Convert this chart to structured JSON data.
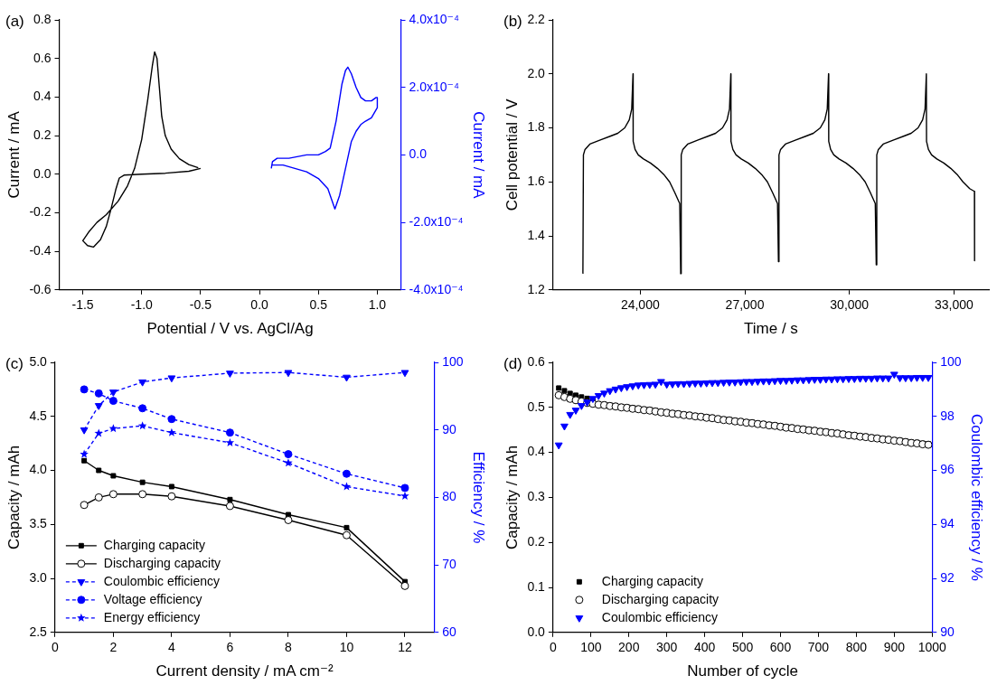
{
  "chart_data": [
    {
      "type": "line",
      "title": "(a)",
      "xlabel": "Potential / V vs. AgCl/Ag",
      "ylabel": "Current / mA",
      "y2label": "Current / mA",
      "marker": "none",
      "xlim": [
        -1.7,
        1.2
      ],
      "xticks": [
        -1.5,
        {
          "value": -1,
          "label": "-1.0"
        },
        -0.5,
        {
          "value": 0,
          "label": "0.0"
        },
        0.5,
        {
          "value": 1,
          "label": "1.0"
        }
      ],
      "ylim": [
        -0.6,
        0.8
      ],
      "yticks": [
        -0.6,
        -0.4,
        -0.2,
        {
          "value": 0,
          "label": "0.0"
        },
        0.2,
        0.4,
        0.6,
        0.8
      ],
      "y2lim": [
        -0.0004,
        0.0004
      ],
      "y2ticks": [
        {
          "value": -0.0004,
          "label": "-4.0x10⁻⁴"
        },
        {
          "value": -0.0002,
          "label": "-2.0x10⁻⁴"
        },
        {
          "value": 0,
          "label": "0.0"
        },
        {
          "value": 0.0002,
          "label": "2.0x10⁻⁴"
        },
        {
          "value": 0.0004,
          "label": "4.0x10⁻⁴"
        }
      ],
      "series": [
        {
          "color": "#000000",
          "x": [
            -0.5,
            -0.6,
            -0.8,
            -1.0,
            -1.15,
            -1.19,
            -1.22,
            -1.26,
            -1.3,
            -1.35,
            -1.41,
            -1.46,
            -1.5,
            -1.45,
            -1.38,
            -1.3,
            -1.2,
            -1.12,
            -1.06,
            -1.0,
            -0.95,
            -0.91,
            -0.89,
            -0.87,
            -0.85,
            -0.83,
            -0.8,
            -0.75,
            -0.68,
            -0.6,
            -0.52
          ],
          "values": [
            0.03,
            0.015,
            0.005,
            0.0,
            -0.005,
            -0.02,
            -0.08,
            -0.18,
            -0.27,
            -0.34,
            -0.378,
            -0.37,
            -0.345,
            -0.3,
            -0.25,
            -0.21,
            -0.14,
            -0.06,
            0.03,
            0.18,
            0.38,
            0.56,
            0.634,
            0.6,
            0.45,
            0.3,
            0.2,
            0.13,
            0.08,
            0.05,
            0.033
          ]
        },
        {
          "color": "#0000ff",
          "axis": "y2",
          "x": [
            0.1,
            0.11,
            0.15,
            0.25,
            0.4,
            0.5,
            0.56,
            0.6,
            0.65,
            0.7,
            0.73,
            0.75,
            0.78,
            0.82,
            0.86,
            0.9,
            0.95,
            0.99,
            1.0,
            1.0,
            0.95,
            0.9,
            0.86,
            0.82,
            0.78,
            0.73,
            0.68,
            0.64,
            0.62,
            0.58,
            0.5,
            0.4,
            0.3,
            0.2,
            0.12,
            0.1
          ],
          "values": [
            -4e-05,
            -2e-05,
            -1e-05,
            -1e-05,
            0.0,
            0.0,
            1e-05,
            2e-05,
            0.0001,
            0.00021,
            0.00025,
            0.00026,
            0.00024,
            0.0002,
            0.00017,
            0.00016,
            0.00016,
            0.00017,
            0.00017,
            0.00014,
            0.00011,
            0.0001,
            9e-05,
            7e-05,
            4e-05,
            -4e-05,
            -0.00012,
            -0.00016,
            -0.00014,
            -0.0001,
            -7e-05,
            -5e-05,
            -4e-05,
            -3e-05,
            -3e-05,
            -3e-05
          ]
        }
      ]
    },
    {
      "type": "line",
      "title": "(b)",
      "xlabel": "Time / s",
      "ylabel": "Cell potential / V",
      "marker": "none",
      "xlim": [
        21500,
        34000
      ],
      "xticks": [
        {
          "value": 24000,
          "label": "24,000"
        },
        {
          "value": 27000,
          "label": "27,000"
        },
        {
          "value": 30000,
          "label": "30,000"
        },
        {
          "value": 33000,
          "label": "33,000"
        }
      ],
      "ylim": [
        1.2,
        2.2
      ],
      "yticks": [
        1.2,
        1.4,
        1.6,
        1.8,
        {
          "value": 2,
          "label": "2.0"
        },
        2.2
      ],
      "series": [
        {
          "color": "#000000",
          "x": [
            22356,
            22371,
            22416,
            22556,
            22856,
            23156,
            23356,
            23556,
            23686,
            23756,
            23793,
            23798,
            23853,
            23943,
            24093,
            24293,
            24493,
            24693,
            24843,
            24993,
            25133,
            25161,
            25176,
            25221,
            25361,
            25661,
            25961,
            26161,
            26361,
            26491,
            26561,
            26598,
            26603,
            26658,
            26748,
            26898,
            27098,
            27298,
            27498,
            27648,
            27798,
            27938,
            27965,
            27980,
            28025,
            28165,
            28465,
            28765,
            28965,
            29165,
            29295,
            29365,
            29402,
            29407,
            29462,
            29552,
            29702,
            29902,
            30102,
            30302,
            30452,
            30602,
            30742,
            30770,
            30785,
            30830,
            30970,
            31270,
            31570,
            31770,
            31970,
            32100,
            32170,
            32207,
            32212,
            32267,
            32357,
            32507,
            32707,
            32907,
            33107,
            33257,
            33450,
            33586,
            33590
          ],
          "values": [
            1.26,
            1.7,
            1.72,
            1.74,
            1.755,
            1.77,
            1.78,
            1.8,
            1.83,
            1.87,
            2.0,
            1.75,
            1.72,
            1.7,
            1.685,
            1.67,
            1.65,
            1.625,
            1.6,
            1.56,
            1.52,
            1.26,
            1.7,
            1.72,
            1.74,
            1.755,
            1.77,
            1.78,
            1.8,
            1.83,
            1.87,
            2.0,
            1.75,
            1.72,
            1.7,
            1.685,
            1.67,
            1.65,
            1.625,
            1.6,
            1.56,
            1.52,
            1.305,
            1.7,
            1.72,
            1.74,
            1.755,
            1.77,
            1.78,
            1.8,
            1.83,
            1.87,
            2.0,
            1.75,
            1.72,
            1.7,
            1.685,
            1.67,
            1.65,
            1.625,
            1.6,
            1.56,
            1.52,
            1.293,
            1.7,
            1.72,
            1.74,
            1.755,
            1.77,
            1.78,
            1.8,
            1.83,
            1.87,
            2.0,
            1.75,
            1.72,
            1.7,
            1.685,
            1.67,
            1.65,
            1.625,
            1.6,
            1.575,
            1.565,
            1.308
          ]
        }
      ]
    },
    {
      "type": "line",
      "title": "(c)",
      "xlabel": "Current density / mA cm⁻²",
      "ylabel": "Capacity / mAh",
      "y2label": "Efficiency / %",
      "legend": "bottom left",
      "xlim": [
        0,
        13
      ],
      "xticks": [
        0,
        2,
        4,
        6,
        8,
        10,
        12
      ],
      "ylim": [
        2.5,
        5
      ],
      "yticks": [
        2.5,
        {
          "value": 3,
          "label": "3.0"
        },
        3.5,
        {
          "value": 4,
          "label": "4.0"
        },
        4.5,
        {
          "value": 5,
          "label": "5.0"
        }
      ],
      "y2lim": [
        60,
        100
      ],
      "y2ticks": [
        60,
        70,
        80,
        90,
        100
      ],
      "x": [
        1,
        1.5,
        2,
        3,
        4,
        6,
        8,
        10,
        12
      ],
      "series": [
        {
          "name": "Charging capacity",
          "color": "#000000",
          "marker": "square",
          "line_style": "solid",
          "values": [
            4.09,
            4.0,
            3.95,
            3.89,
            3.85,
            3.73,
            3.59,
            3.47,
            2.97
          ]
        },
        {
          "name": "Discharging capacity",
          "color": "#000000",
          "marker": "circle-open",
          "line_style": "solid",
          "values": [
            3.68,
            3.75,
            3.78,
            3.78,
            3.76,
            3.67,
            3.54,
            3.4,
            2.93
          ]
        },
        {
          "name": "Coulombic efficiency",
          "color": "#0000ff",
          "marker": "triangle-down",
          "line_style": "dashed",
          "axis": "y2",
          "values": [
            90.0,
            93.6,
            95.6,
            97.1,
            97.7,
            98.4,
            98.5,
            97.8,
            98.5
          ]
        },
        {
          "name": "Voltage efficiency",
          "color": "#0000ff",
          "marker": "circle",
          "line_style": "dashed",
          "axis": "y2",
          "values": [
            96.0,
            95.4,
            94.3,
            93.2,
            91.6,
            89.6,
            86.4,
            83.5,
            81.4
          ]
        },
        {
          "name": "Energy efficiency",
          "color": "#0000ff",
          "marker": "star",
          "line_style": "dashed",
          "axis": "y2",
          "values": [
            86.4,
            89.5,
            90.2,
            90.6,
            89.6,
            88.1,
            85.1,
            81.6,
            80.2
          ]
        }
      ]
    },
    {
      "type": "scatter",
      "title": "(d)",
      "xlabel": "Number of cycle",
      "ylabel": "Capacity / mAh",
      "y2label": "Coulombic efficiency / %",
      "legend": "bottom left",
      "xlim": [
        0,
        1000
      ],
      "xticks": [
        0,
        100,
        200,
        300,
        400,
        500,
        600,
        700,
        800,
        900,
        1000
      ],
      "ylim": [
        0,
        0.6
      ],
      "yticks": [
        {
          "value": 0,
          "label": "0.0"
        },
        0.1,
        0.2,
        0.3,
        0.4,
        0.5,
        0.6
      ],
      "y2lim": [
        90,
        100
      ],
      "y2ticks": [
        90,
        92,
        94,
        96,
        98,
        100
      ],
      "x": [
        15,
        30,
        45,
        60,
        75,
        90,
        105,
        120,
        135,
        150,
        165,
        180,
        195,
        210,
        225,
        240,
        255,
        270,
        285,
        300,
        315,
        330,
        345,
        360,
        375,
        390,
        405,
        420,
        435,
        450,
        465,
        480,
        495,
        510,
        525,
        540,
        555,
        570,
        585,
        600,
        615,
        630,
        645,
        660,
        675,
        690,
        705,
        720,
        735,
        750,
        765,
        780,
        795,
        810,
        825,
        840,
        855,
        870,
        885,
        900,
        915,
        930,
        945,
        960,
        975,
        990
      ],
      "series": [
        {
          "name": "Charging capacity",
          "color": "#000000",
          "marker": "square",
          "values": [
            0.543,
            0.537,
            0.531,
            0.527,
            0.523,
            0.52,
            0.517,
            0.508,
            0.507,
            0.505,
            0.504,
            0.502,
            0.501,
            0.499,
            0.498,
            0.496,
            0.495,
            0.493,
            0.491,
            0.49,
            0.488,
            0.487,
            0.485,
            0.484,
            0.482,
            0.481,
            0.479,
            0.478,
            0.476,
            0.474,
            0.473,
            0.471,
            0.47,
            0.468,
            0.467,
            0.465,
            0.464,
            0.462,
            0.461,
            0.459,
            0.457,
            0.456,
            0.454,
            0.453,
            0.451,
            0.45,
            0.448,
            0.447,
            0.445,
            0.444,
            0.442,
            0.44,
            0.439,
            0.437,
            0.436,
            0.434,
            0.433,
            0.431,
            0.43,
            0.428,
            0.427,
            0.425,
            0.423,
            0.422,
            0.42,
            0.419
          ]
        },
        {
          "name": "Discharging capacity",
          "color": "#000000",
          "marker": "circle-open",
          "values": [
            0.527,
            0.523,
            0.519,
            0.516,
            0.513,
            0.51,
            0.508,
            0.506,
            0.505,
            0.503,
            0.502,
            0.5,
            0.499,
            0.497,
            0.496,
            0.494,
            0.493,
            0.491,
            0.489,
            0.488,
            0.486,
            0.485,
            0.483,
            0.482,
            0.48,
            0.479,
            0.477,
            0.476,
            0.474,
            0.472,
            0.471,
            0.469,
            0.468,
            0.466,
            0.465,
            0.463,
            0.462,
            0.46,
            0.459,
            0.457,
            0.455,
            0.454,
            0.452,
            0.451,
            0.449,
            0.448,
            0.446,
            0.445,
            0.443,
            0.442,
            0.44,
            0.438,
            0.437,
            0.435,
            0.434,
            0.432,
            0.431,
            0.429,
            0.428,
            0.426,
            0.425,
            0.423,
            0.421,
            0.42,
            0.418,
            0.417
          ]
        },
        {
          "name": "Coulombic efficiency",
          "color": "#0000ff",
          "marker": "triangle-down",
          "axis": "y2",
          "values": [
            96.94,
            97.64,
            98.07,
            98.23,
            98.4,
            98.53,
            98.66,
            98.77,
            98.86,
            98.95,
            99.01,
            99.06,
            99.1,
            99.13,
            99.16,
            99.17,
            99.18,
            99.19,
            99.29,
            99.19,
            99.2,
            99.21,
            99.21,
            99.22,
            99.23,
            99.23,
            99.24,
            99.25,
            99.25,
            99.26,
            99.27,
            99.27,
            99.28,
            99.29,
            99.29,
            99.3,
            99.31,
            99.31,
            99.32,
            99.33,
            99.33,
            99.34,
            99.35,
            99.35,
            99.36,
            99.37,
            99.37,
            99.38,
            99.38,
            99.39,
            99.39,
            99.4,
            99.4,
            99.41,
            99.41,
            99.41,
            99.42,
            99.42,
            99.42,
            99.56,
            99.43,
            99.43,
            99.43,
            99.44,
            99.44,
            99.44
          ]
        }
      ]
    }
  ]
}
